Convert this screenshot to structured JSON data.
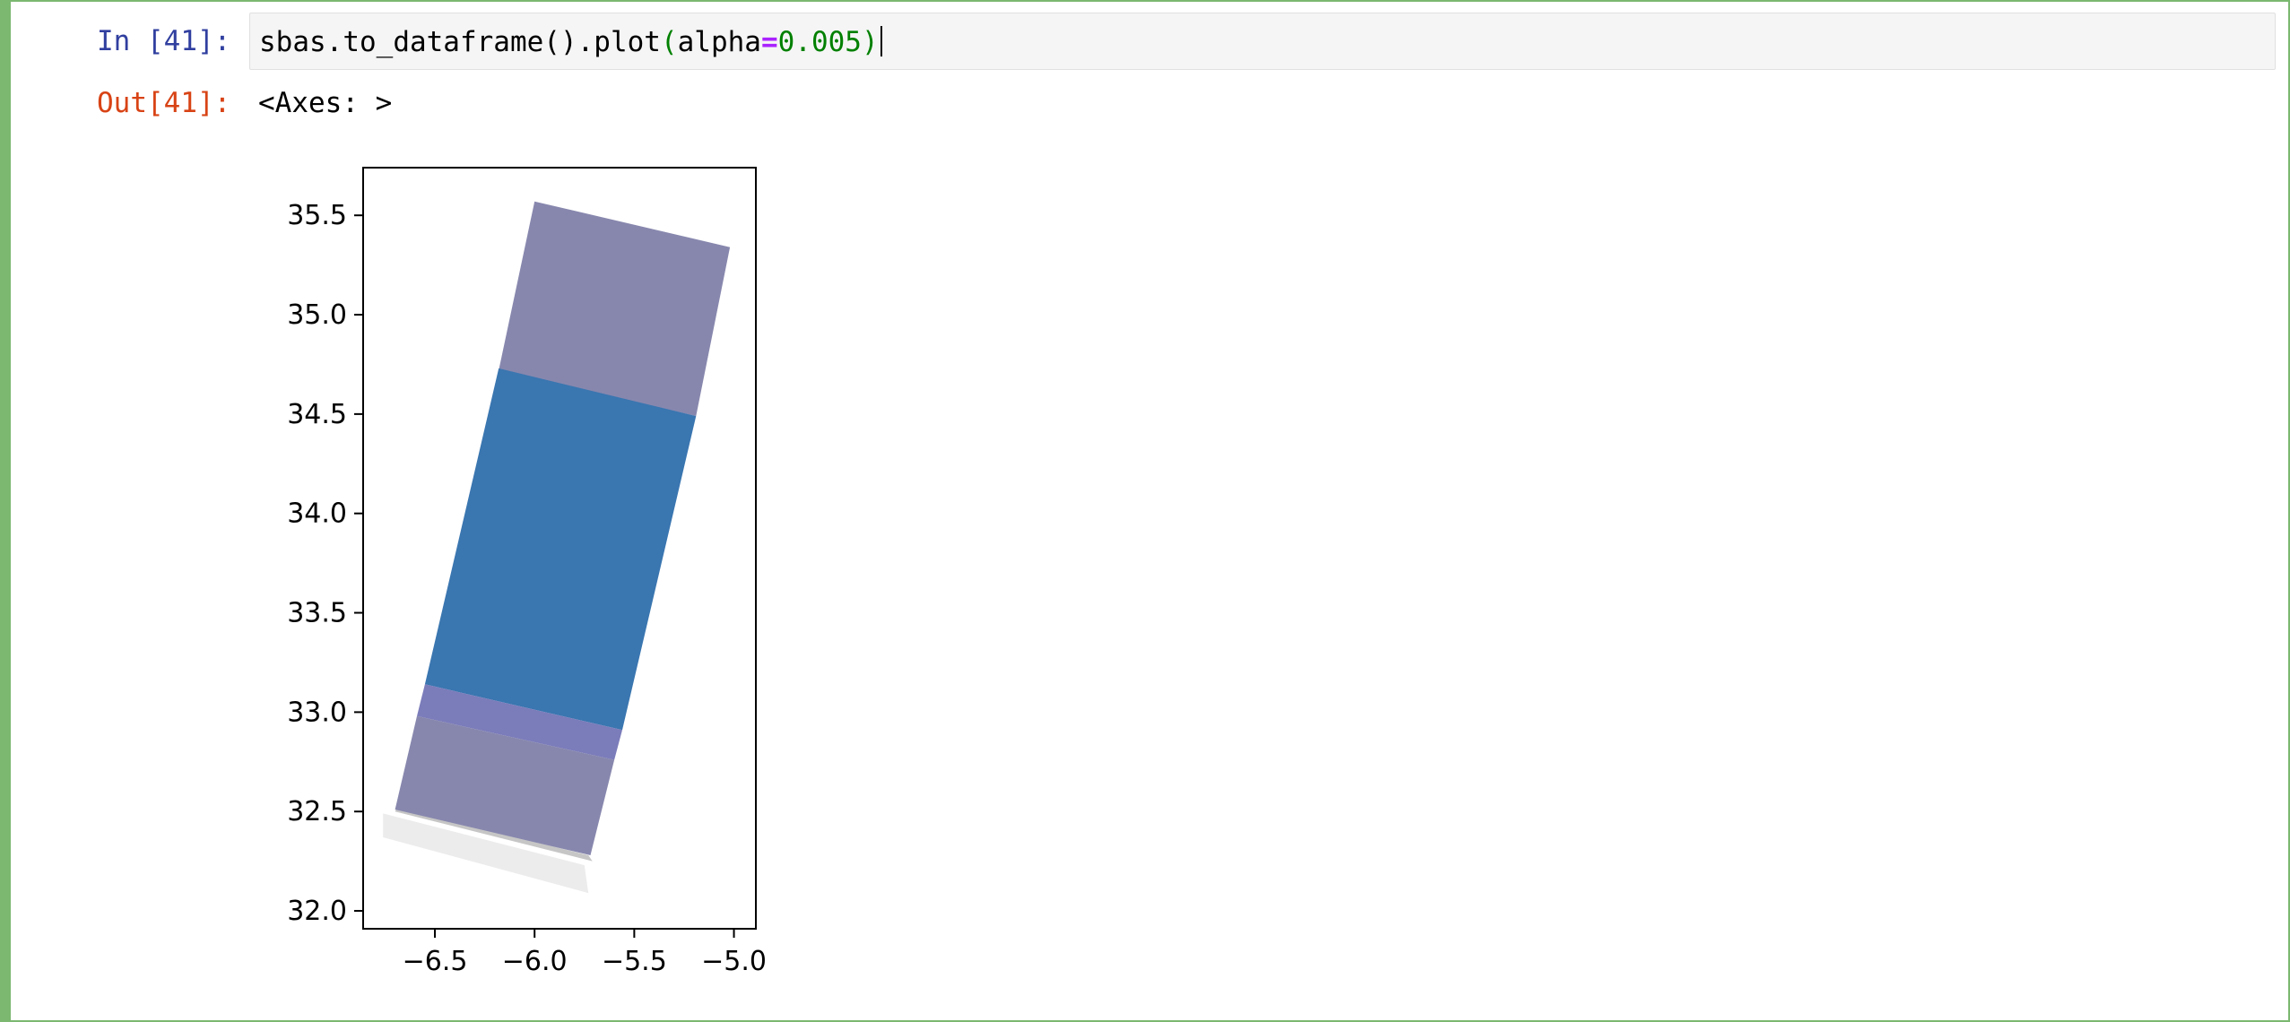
{
  "cell": {
    "input_prompt": "In [41]:",
    "output_prompt": "Out[41]:",
    "code": {
      "object": "sbas",
      "dot1": ".",
      "method1": "to_dataframe",
      "call1": "()",
      "dot2": ".",
      "method2": "plot",
      "open_paren": "(",
      "kwarg": "alpha",
      "equals": "=",
      "value": "0.005",
      "close_paren": ")"
    },
    "output_text": "<Axes: >"
  },
  "colors": {
    "cell_border": "#7cb870",
    "input_prompt": "#303f9f",
    "output_prompt": "#d84315",
    "polygon_blue": "#3a76b0",
    "polygon_purple": "#8787ae",
    "polygon_overlap": "#7b7cba",
    "polygon_light_gray": "#ececec",
    "polygon_edge_gray": "#c6c6c6"
  },
  "chart_data": {
    "type": "area",
    "xlim": [
      -6.86,
      -4.89
    ],
    "ylim": [
      31.91,
      35.74
    ],
    "xticks": [
      -6.5,
      -6.0,
      -5.5,
      -5.0
    ],
    "xtick_labels": [
      "−6.5",
      "−6.0",
      "−5.5",
      "−5.0"
    ],
    "yticks": [
      32.0,
      32.5,
      33.0,
      33.5,
      34.0,
      34.5,
      35.0,
      35.5
    ],
    "ytick_labels": [
      "32.0",
      "32.5",
      "33.0",
      "33.5",
      "34.0",
      "34.5",
      "35.0",
      "35.5"
    ],
    "grid": false,
    "polygons": [
      {
        "name": "frame-light-gray",
        "color": "#ececec",
        "points": [
          [
            -6.76,
            32.49
          ],
          [
            -5.75,
            32.23
          ],
          [
            -5.73,
            32.09
          ],
          [
            -6.76,
            32.37
          ]
        ]
      },
      {
        "name": "frame-edge-gray",
        "color": "#c6c6c6",
        "points": [
          [
            -6.69,
            32.52
          ],
          [
            -5.73,
            32.28
          ],
          [
            -5.71,
            32.25
          ],
          [
            -6.7,
            32.5
          ]
        ]
      },
      {
        "name": "frame-purple-top",
        "color": "#8787ae",
        "points": [
          [
            -6.0,
            35.57
          ],
          [
            -5.02,
            35.34
          ],
          [
            -5.19,
            34.49
          ],
          [
            -6.18,
            34.72
          ]
        ]
      },
      {
        "name": "frame-blue-middle",
        "color": "#3a76b0",
        "points": [
          [
            -6.18,
            34.73
          ],
          [
            -5.19,
            34.49
          ],
          [
            -5.56,
            32.91
          ],
          [
            -6.55,
            33.14
          ]
        ]
      },
      {
        "name": "frame-overlap",
        "color": "#7b7cba",
        "points": [
          [
            -6.55,
            33.14
          ],
          [
            -5.56,
            32.91
          ],
          [
            -5.6,
            32.76
          ],
          [
            -6.59,
            32.98
          ]
        ]
      },
      {
        "name": "frame-purple-bottom",
        "color": "#8787ae",
        "points": [
          [
            -6.59,
            32.98
          ],
          [
            -5.6,
            32.76
          ],
          [
            -5.72,
            32.28
          ],
          [
            -6.7,
            32.51
          ]
        ]
      }
    ]
  }
}
